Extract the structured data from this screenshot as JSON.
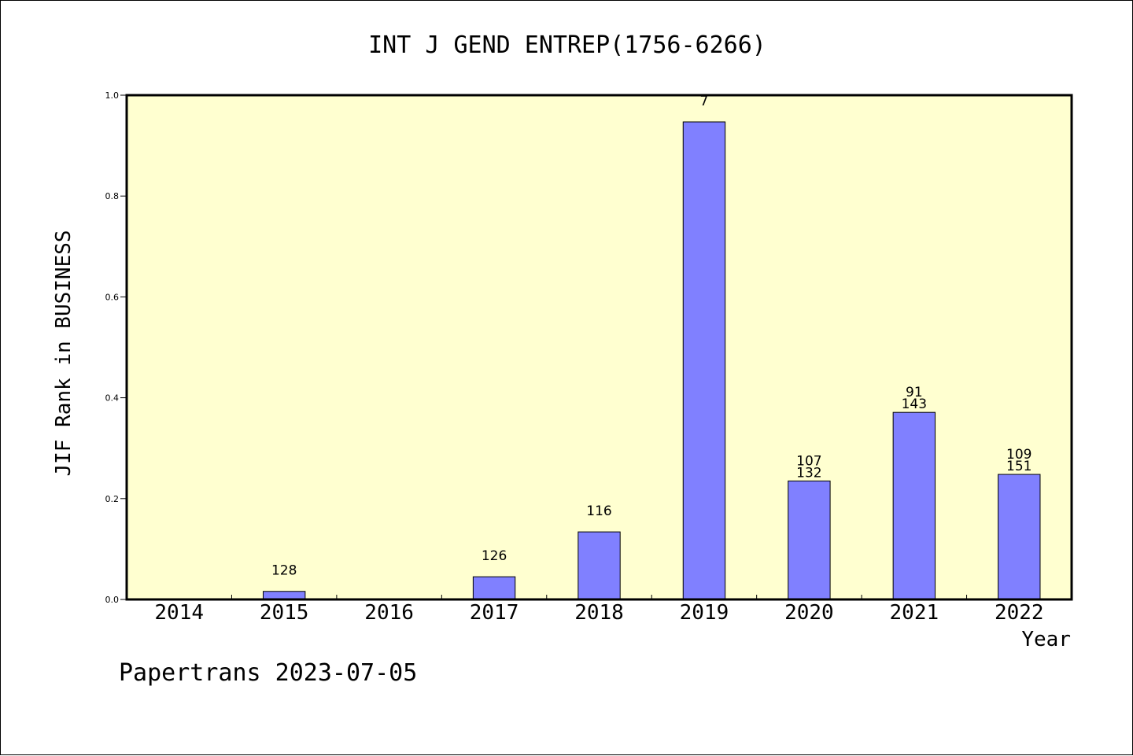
{
  "chart_data": {
    "type": "bar",
    "title": "INT J GEND ENTREP(1756-6266)",
    "xlabel": "Year",
    "ylabel": "JIF Rank in BUSINESS",
    "ylim": [
      0,
      1.0
    ],
    "yticks": [
      "0.0",
      "0.2",
      "0.4",
      "0.6",
      "0.8",
      "1.0"
    ],
    "categories": [
      "2014",
      "2015",
      "2016",
      "2017",
      "2018",
      "2019",
      "2020",
      "2021",
      "2022"
    ],
    "values": [
      null,
      0.016,
      null,
      0.045,
      0.134,
      0.947,
      0.235,
      0.371,
      0.248
    ],
    "labels_upper": [
      "",
      "",
      "",
      "",
      "",
      "",
      "107",
      "91",
      "109"
    ],
    "labels_lower": [
      "",
      "128",
      "",
      "126",
      "116",
      "7",
      "132",
      "143",
      "151"
    ],
    "grid": false,
    "colors": {
      "plot_background": "#ffffd0",
      "bar_fill": "#8080ff",
      "bar_stroke": "#000000"
    }
  },
  "footer": {
    "credit": "Papertrans 2023-07-05"
  }
}
